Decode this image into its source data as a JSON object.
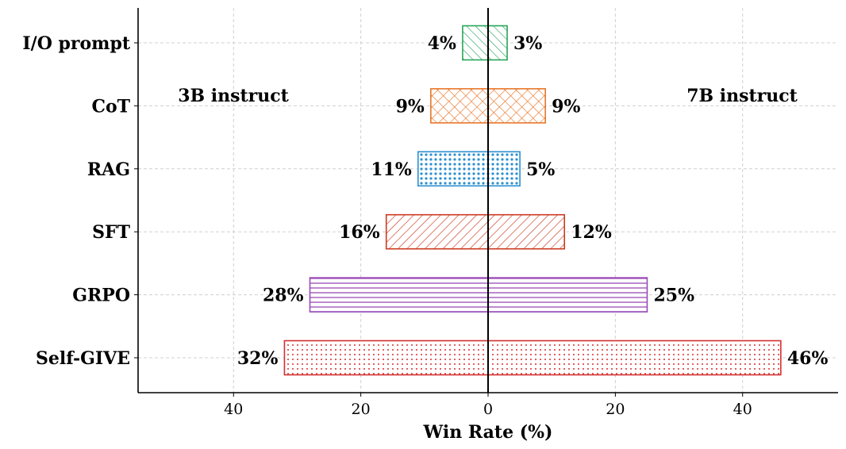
{
  "chart_data": {
    "type": "bar",
    "orientation": "horizontal-diverging",
    "categories": [
      "I/O prompt",
      "CoT",
      "RAG",
      "SFT",
      "GRPO",
      "Self-GIVE"
    ],
    "series": [
      {
        "name": "3B instruct",
        "side": "left",
        "values": [
          4,
          9,
          11,
          16,
          28,
          32
        ]
      },
      {
        "name": "7B instruct",
        "side": "right",
        "values": [
          3,
          9,
          5,
          12,
          25,
          46
        ]
      }
    ],
    "value_labels": {
      "left": [
        "4%",
        "9%",
        "11%",
        "16%",
        "28%",
        "32%"
      ],
      "right": [
        "3%",
        "9%",
        "5%",
        "12%",
        "25%",
        "46%"
      ]
    },
    "colors": [
      "#27a65a",
      "#e8772a",
      "#2b8fd0",
      "#cc3a22",
      "#9a4bb8",
      "#d62f2f"
    ],
    "patterns": [
      "diagonal",
      "crosshatch",
      "dots",
      "backslash",
      "horizontal",
      "small-dots"
    ],
    "xlabel": "Win Rate (%)",
    "xlim": [
      -55,
      55
    ],
    "xticks": [
      -40,
      -20,
      0,
      20,
      40
    ],
    "xtick_labels": [
      "40",
      "20",
      "0",
      "20",
      "40"
    ],
    "annotations": {
      "left": "3B instruct",
      "right": "7B instruct"
    },
    "grid": true
  }
}
